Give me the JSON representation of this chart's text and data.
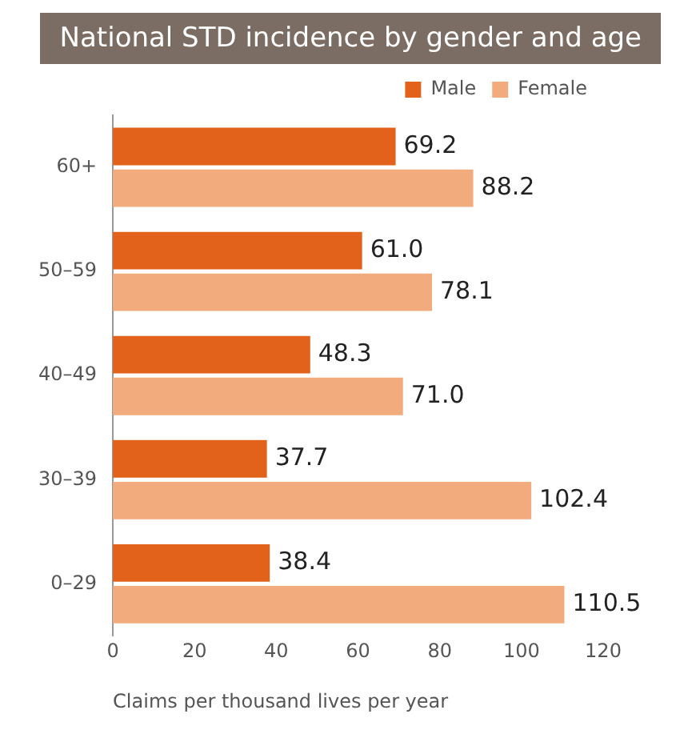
{
  "chart_data": {
    "type": "bar",
    "orientation": "horizontal",
    "title": "National STD incidence by gender and age",
    "xlabel": "Claims per thousand lives per year",
    "categories": [
      "60+",
      "50–59",
      "40–49",
      "30–39",
      "0–29"
    ],
    "series": [
      {
        "name": "Male",
        "color": "#e2621b",
        "values": [
          69.2,
          61.0,
          48.3,
          37.7,
          38.4
        ],
        "value_labels": [
          "69.2",
          "61.0",
          "48.3",
          "37.7",
          "38.4"
        ]
      },
      {
        "name": "Female",
        "color": "#f2ab7c",
        "values": [
          88.2,
          78.1,
          71.0,
          102.4,
          110.5
        ],
        "value_labels": [
          "88.2",
          "78.1",
          "71.0",
          "102.4",
          "110.5"
        ]
      }
    ],
    "xlim": [
      0,
      120
    ],
    "xticks": [
      0,
      20,
      40,
      60,
      80,
      100,
      120
    ],
    "grid": false,
    "legend": "top right"
  }
}
